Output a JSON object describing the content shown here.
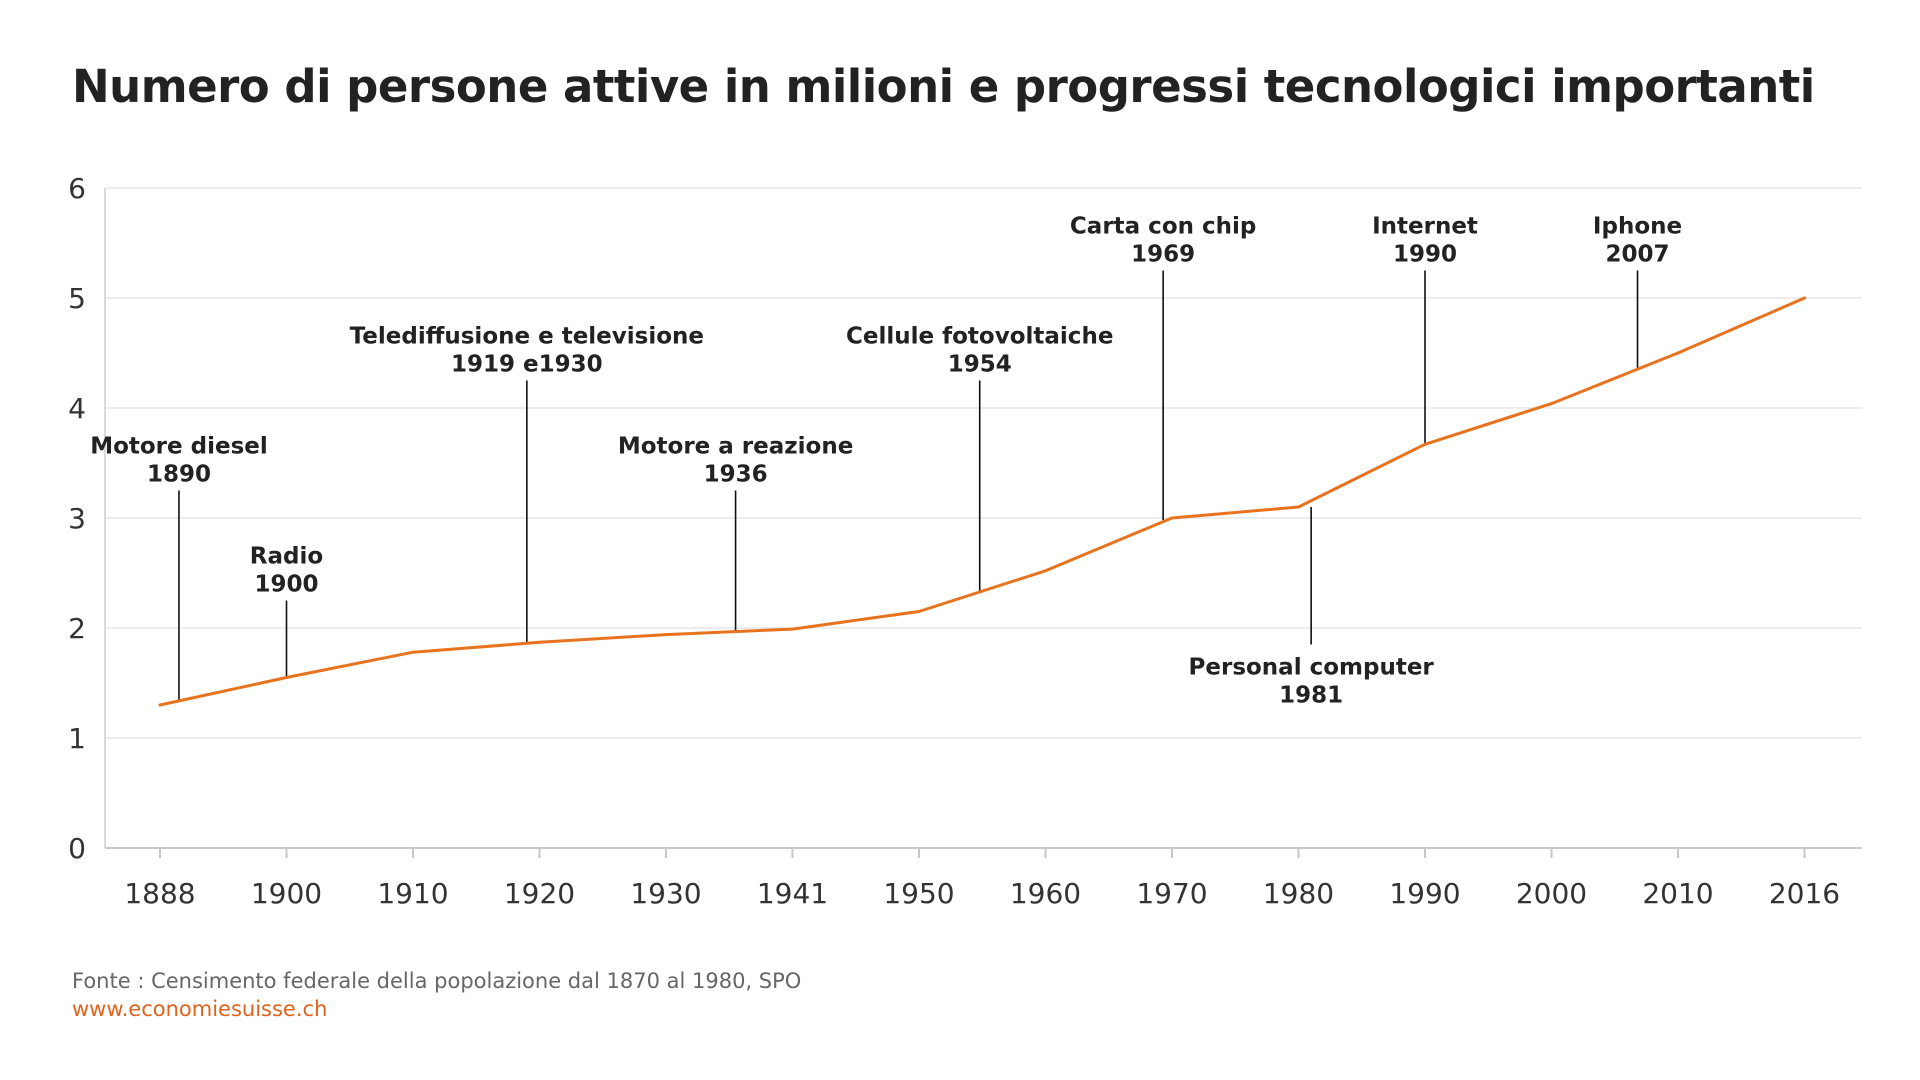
{
  "chart_data": {
    "type": "line",
    "title": "Numero di persone attive in milioni e progressi tecnologici importanti",
    "xlabel": "",
    "ylabel": "",
    "ylim": [
      0,
      6
    ],
    "yticks": [
      0,
      1,
      2,
      3,
      4,
      5,
      6
    ],
    "categories": [
      "1888",
      "1900",
      "1910",
      "1920",
      "1930",
      "1941",
      "1950",
      "1960",
      "1970",
      "1980",
      "1990",
      "2000",
      "2010",
      "2016"
    ],
    "values": [
      1.3,
      1.55,
      1.78,
      1.87,
      1.94,
      1.99,
      2.15,
      2.52,
      3.0,
      3.1,
      3.67,
      4.04,
      4.5,
      5.0
    ],
    "series_color": "#e8731e",
    "grid": "horizontal",
    "annotations": [
      {
        "label": "Motore diesel",
        "year": "1890",
        "x": 0.15,
        "y": 1.33,
        "side": "above",
        "top": 3.25
      },
      {
        "label": "Radio",
        "year": "1900",
        "x": 1.0,
        "y": 1.55,
        "side": "above",
        "top": 2.25
      },
      {
        "label": "Telediffusione e televisione",
        "year": "1919 e1930",
        "x": 2.9,
        "y": 1.86,
        "side": "above",
        "top": 4.25
      },
      {
        "label": "Motore a reazione",
        "year": "1936",
        "x": 4.55,
        "y": 1.97,
        "side": "above",
        "top": 3.25
      },
      {
        "label": "Cellule fotovoltaiche",
        "year": "1954",
        "x": 6.48,
        "y": 2.32,
        "side": "above",
        "top": 4.25
      },
      {
        "label": "Carta con chip",
        "year": "1969",
        "x": 7.93,
        "y": 2.98,
        "side": "above",
        "top": 5.25
      },
      {
        "label": "Personal computer",
        "year": "1981",
        "x": 9.1,
        "y": 3.1,
        "side": "below",
        "top": 1.85
      },
      {
        "label": "Internet",
        "year": "1990",
        "x": 10.0,
        "y": 3.67,
        "side": "above",
        "top": 5.25
      },
      {
        "label": "Iphone",
        "year": "2007",
        "x": 11.68,
        "y": 4.35,
        "side": "above",
        "top": 5.25
      }
    ]
  },
  "footer": {
    "source": "Fonte : Censimento federale della popolazione dal 1870 al 1980, SPO",
    "url": "www.economiesuisse.ch"
  }
}
